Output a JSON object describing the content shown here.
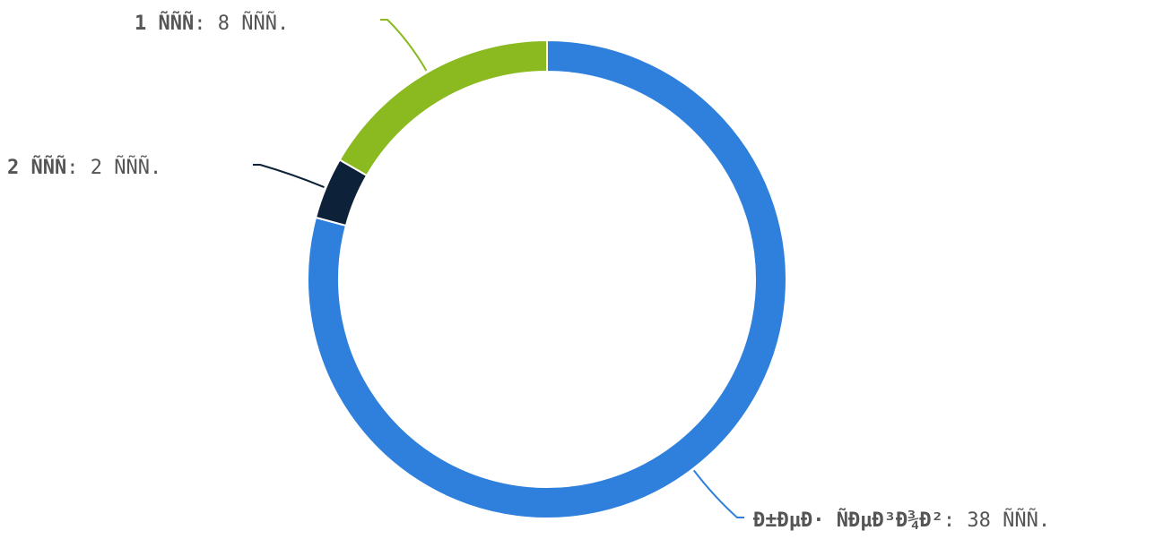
{
  "chart_data": {
    "type": "pie",
    "donut": true,
    "start_angle_deg": 0,
    "label_color": "#555555",
    "slices": [
      {
        "name": "Ð±ÐµÐ· ÑÐµÐ³Ð¾Ð²",
        "value_text": "38 ÑÑÑ.",
        "value": 38,
        "color": "#2f80dc"
      },
      {
        "name": "2 ÑÑÑ",
        "value_text": "2 ÑÑÑ.",
        "value": 2,
        "color": "#0d2138"
      },
      {
        "name": "1 ÑÑÑ",
        "value_text": "8 ÑÑÑ.",
        "value": 8,
        "color": "#8ab920"
      }
    ]
  }
}
